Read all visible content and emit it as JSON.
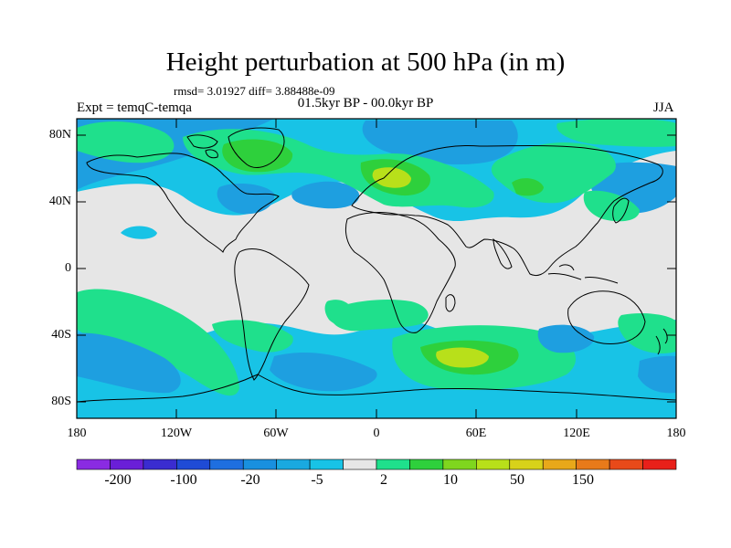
{
  "title": "Height perturbation at 500 hPa (in m)",
  "stats": "rmsd= 3.01927 diff= 3.88488e-09",
  "experiment": "Expt = temqC-temqa",
  "period": "01.5kyr BP - 00.0kyr BP",
  "season": "JJA",
  "map": {
    "projection": "cylindrical equidistant",
    "lon_range": [
      -180,
      180
    ],
    "lat_range": [
      -90,
      90
    ],
    "lat_labels": [
      "80N",
      "40N",
      "0",
      "40S",
      "80S"
    ],
    "lon_labels": [
      "180",
      "120W",
      "60W",
      "0",
      "60E",
      "120E",
      "180"
    ],
    "background_color": "#e6e6e6",
    "coastline_color": "#000000"
  },
  "colorbar": {
    "colors": [
      "#8a2be2",
      "#6a1fd8",
      "#3a2cd0",
      "#1f4bd6",
      "#1e6fe0",
      "#1990df",
      "#1aa9e0",
      "#18c3e6",
      "#e6e6e6",
      "#1fe08c",
      "#2ed03c",
      "#7fd61e",
      "#b8e01a",
      "#d8d21a",
      "#e8a81a",
      "#e87a1a",
      "#e84a1a",
      "#e8201a"
    ],
    "tick_labels": [
      "-200",
      "-100",
      "-20",
      "-5",
      "2",
      "10",
      "50",
      "150"
    ]
  }
}
